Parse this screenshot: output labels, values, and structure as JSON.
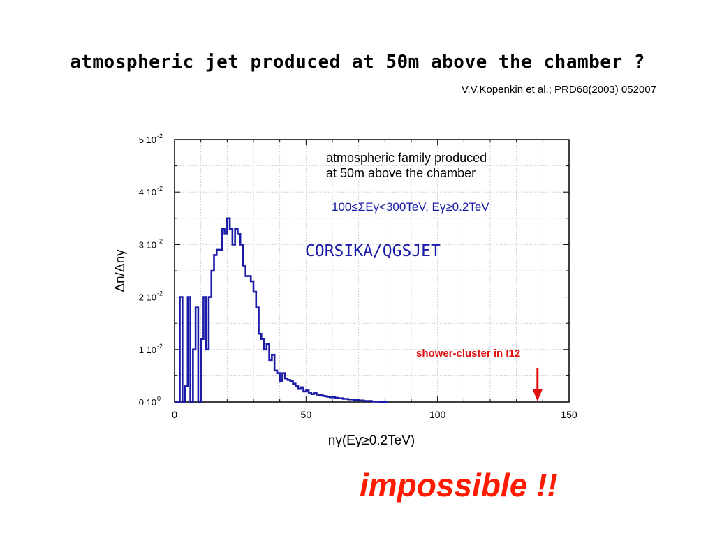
{
  "slide": {
    "title": "atmospheric jet produced at 50m above the chamber ?",
    "citation": "V.V.Kopenkin et al.; PRD68(2003) 052007",
    "conclusion": "impossible !!"
  },
  "chart_data": {
    "type": "histogram",
    "xlabel": "nγ(Eγ≥0.2TeV)",
    "ylabel": "Δn/Δnγ",
    "xlim": [
      0,
      150
    ],
    "ylim": [
      0,
      0.05
    ],
    "x_ticks": [
      "0",
      "50",
      "100",
      "150"
    ],
    "y_ticks": [
      {
        "mant": "0 10",
        "exp": "0"
      },
      {
        "mant": "1 10",
        "exp": "-2"
      },
      {
        "mant": "2 10",
        "exp": "-2"
      },
      {
        "mant": "3 10",
        "exp": "-2"
      },
      {
        "mant": "4 10",
        "exp": "-2"
      },
      {
        "mant": "5 10",
        "exp": "-2"
      }
    ],
    "grid": true,
    "bin_width": 1,
    "bins_start": 0,
    "series": [
      {
        "color": "#1a1aa8",
        "values": [
          0.0,
          0.0,
          0.02,
          0.0,
          0.003,
          0.02,
          0.0,
          0.01,
          0.018,
          0.0,
          0.012,
          0.02,
          0.01,
          0.02,
          0.025,
          0.028,
          0.029,
          0.029,
          0.033,
          0.032,
          0.035,
          0.033,
          0.03,
          0.033,
          0.032,
          0.03,
          0.026,
          0.024,
          0.024,
          0.023,
          0.021,
          0.018,
          0.013,
          0.012,
          0.01,
          0.011,
          0.008,
          0.009,
          0.006,
          0.0055,
          0.004,
          0.0055,
          0.0045,
          0.0042,
          0.004,
          0.0035,
          0.003,
          0.0025,
          0.0028,
          0.002,
          0.0022,
          0.0018,
          0.0015,
          0.0017,
          0.0014,
          0.0013,
          0.0012,
          0.0011,
          0.001,
          0.0009,
          0.0009,
          0.0008,
          0.0007,
          0.0007,
          0.0006,
          0.0006,
          0.0005,
          0.0005,
          0.0004,
          0.0004,
          0.0003,
          0.0003,
          0.0002,
          0.0002,
          0.0002,
          0.0001,
          0.0001,
          0.0001,
          0.0,
          0.0,
          0.0
        ]
      }
    ],
    "annotations": {
      "description_line1": "atmospheric family produced",
      "description_line2": "at 50m above the chamber",
      "energy_condition": "100≤ΣEγ<300TeV, Eγ≥0.2TeV",
      "model": "CORSIKA/QGSJET",
      "observed_label": "shower-cluster in I12",
      "observed_x": 138
    }
  }
}
